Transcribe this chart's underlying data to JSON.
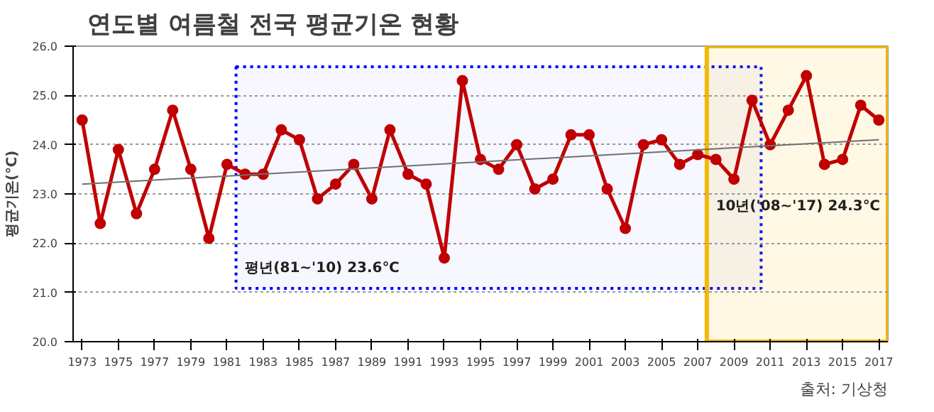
{
  "chart_data": {
    "type": "line",
    "title": "연도별 여름철 전국 평균기온 현황",
    "ylabel": "평균기온(℃)",
    "x": [
      1973,
      1974,
      1975,
      1976,
      1977,
      1978,
      1979,
      1980,
      1981,
      1982,
      1983,
      1984,
      1985,
      1986,
      1987,
      1988,
      1989,
      1990,
      1991,
      1992,
      1993,
      1994,
      1995,
      1996,
      1997,
      1998,
      1999,
      2000,
      2001,
      2002,
      2003,
      2004,
      2005,
      2006,
      2007,
      2008,
      2009,
      2010,
      2011,
      2012,
      2013,
      2014,
      2015,
      2016,
      2017
    ],
    "series": [
      {
        "color": "#c00000",
        "values": [
          24.5,
          22.4,
          23.9,
          22.6,
          23.5,
          24.7,
          23.5,
          22.1,
          23.6,
          23.4,
          23.4,
          24.3,
          24.1,
          22.9,
          23.2,
          23.6,
          22.9,
          24.3,
          23.4,
          23.2,
          21.7,
          25.3,
          23.7,
          23.5,
          24.0,
          23.1,
          23.3,
          24.2,
          24.2,
          23.1,
          22.3,
          24.0,
          24.1,
          23.6,
          23.8,
          23.7,
          23.3,
          24.9,
          24.0,
          24.7,
          25.4,
          23.6,
          23.7,
          24.8,
          24.5
        ]
      },
      {
        "type": "line",
        "color": "#707070",
        "marker": "none",
        "x": [
          1973,
          2017
        ],
        "values": [
          23.2,
          24.1
        ]
      }
    ],
    "xlim": [
      1972.5,
      2017.5
    ],
    "xticks": [
      1973,
      1975,
      1977,
      1979,
      1981,
      1983,
      1985,
      1987,
      1989,
      1991,
      1993,
      1995,
      1997,
      1999,
      2001,
      2003,
      2005,
      2007,
      2009,
      2011,
      2013,
      2015,
      2017
    ],
    "ylim": [
      20.0,
      26.0
    ],
    "yticks": [
      {
        "value": 20,
        "label": "20.0"
      },
      {
        "value": 21,
        "label": "21.0"
      },
      {
        "value": 22,
        "label": "22.0"
      },
      {
        "value": 23,
        "label": "23.0"
      },
      {
        "value": 24,
        "label": "24.0"
      },
      {
        "value": 25,
        "label": "25.0"
      },
      {
        "value": 26,
        "label": "26.0"
      }
    ],
    "bands": [
      {
        "axis": "x",
        "from": 1981.5,
        "to": 2010.5,
        "label": "평년(81~'10) 23.6℃",
        "color": "#0000ff"
      },
      {
        "axis": "x",
        "from": 2007.5,
        "to": 2017.5,
        "label": "10년('08~'17) 24.3℃",
        "color": "#f5b800"
      }
    ],
    "annotations": [
      "출처: 기상청"
    ],
    "grid": "y",
    "marker": "circle",
    "line_style": "solid"
  }
}
